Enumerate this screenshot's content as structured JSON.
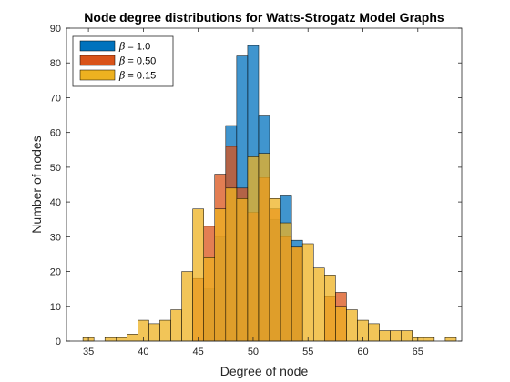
{
  "chart_data": {
    "type": "bar",
    "title": "Node degree distributions for Watts-Strogatz Model Graphs",
    "xlabel": "Degree of node",
    "ylabel": "Number of nodes",
    "xlim": [
      33,
      69
    ],
    "ylim": [
      0,
      90
    ],
    "xticks": [
      35,
      40,
      45,
      50,
      55,
      60,
      65
    ],
    "yticks": [
      0,
      10,
      20,
      30,
      40,
      50,
      60,
      70,
      80,
      90
    ],
    "grid": false,
    "legend_position": "top-left",
    "series": [
      {
        "symbol": "β",
        "name": " = 1.0",
        "color": "#0072BD",
        "bars": [
          {
            "x": 46,
            "y": 15
          },
          {
            "x": 47,
            "y": 30
          },
          {
            "x": 48,
            "y": 62
          },
          {
            "x": 49,
            "y": 82
          },
          {
            "x": 50,
            "y": 85
          },
          {
            "x": 51,
            "y": 65
          },
          {
            "x": 52,
            "y": 35
          },
          {
            "x": 53,
            "y": 42
          },
          {
            "x": 54,
            "y": 29
          }
        ]
      },
      {
        "symbol": "β",
        "name": " = 0.50",
        "color": "#D95319",
        "bars": [
          {
            "x": 45,
            "y": 18
          },
          {
            "x": 46,
            "y": 33
          },
          {
            "x": 47,
            "y": 48
          },
          {
            "x": 48,
            "y": 56
          },
          {
            "x": 49,
            "y": 44
          },
          {
            "x": 50,
            "y": 37
          },
          {
            "x": 51,
            "y": 47
          },
          {
            "x": 52,
            "y": 38
          },
          {
            "x": 53,
            "y": 30
          },
          {
            "x": 54,
            "y": 27
          },
          {
            "x": 57,
            "y": 13
          },
          {
            "x": 58,
            "y": 14
          }
        ]
      },
      {
        "symbol": "β",
        "name": " = 0.15",
        "color": "#EDB120",
        "bars": [
          {
            "x": 35,
            "y": 1
          },
          {
            "x": 37,
            "y": 1
          },
          {
            "x": 38,
            "y": 1
          },
          {
            "x": 39,
            "y": 2
          },
          {
            "x": 40,
            "y": 6
          },
          {
            "x": 41,
            "y": 5
          },
          {
            "x": 42,
            "y": 6
          },
          {
            "x": 43,
            "y": 9
          },
          {
            "x": 44,
            "y": 20
          },
          {
            "x": 45,
            "y": 38
          },
          {
            "x": 46,
            "y": 24
          },
          {
            "x": 47,
            "y": 38
          },
          {
            "x": 48,
            "y": 44
          },
          {
            "x": 49,
            "y": 41
          },
          {
            "x": 50,
            "y": 53
          },
          {
            "x": 51,
            "y": 54
          },
          {
            "x": 52,
            "y": 41
          },
          {
            "x": 53,
            "y": 34
          },
          {
            "x": 54,
            "y": 27
          },
          {
            "x": 55,
            "y": 28
          },
          {
            "x": 56,
            "y": 21
          },
          {
            "x": 57,
            "y": 19
          },
          {
            "x": 58,
            "y": 10
          },
          {
            "x": 59,
            "y": 9
          },
          {
            "x": 60,
            "y": 6
          },
          {
            "x": 61,
            "y": 5
          },
          {
            "x": 62,
            "y": 3
          },
          {
            "x": 63,
            "y": 3
          },
          {
            "x": 64,
            "y": 3
          },
          {
            "x": 65,
            "y": 1
          },
          {
            "x": 66,
            "y": 1
          },
          {
            "x": 68,
            "y": 1
          }
        ]
      }
    ]
  }
}
